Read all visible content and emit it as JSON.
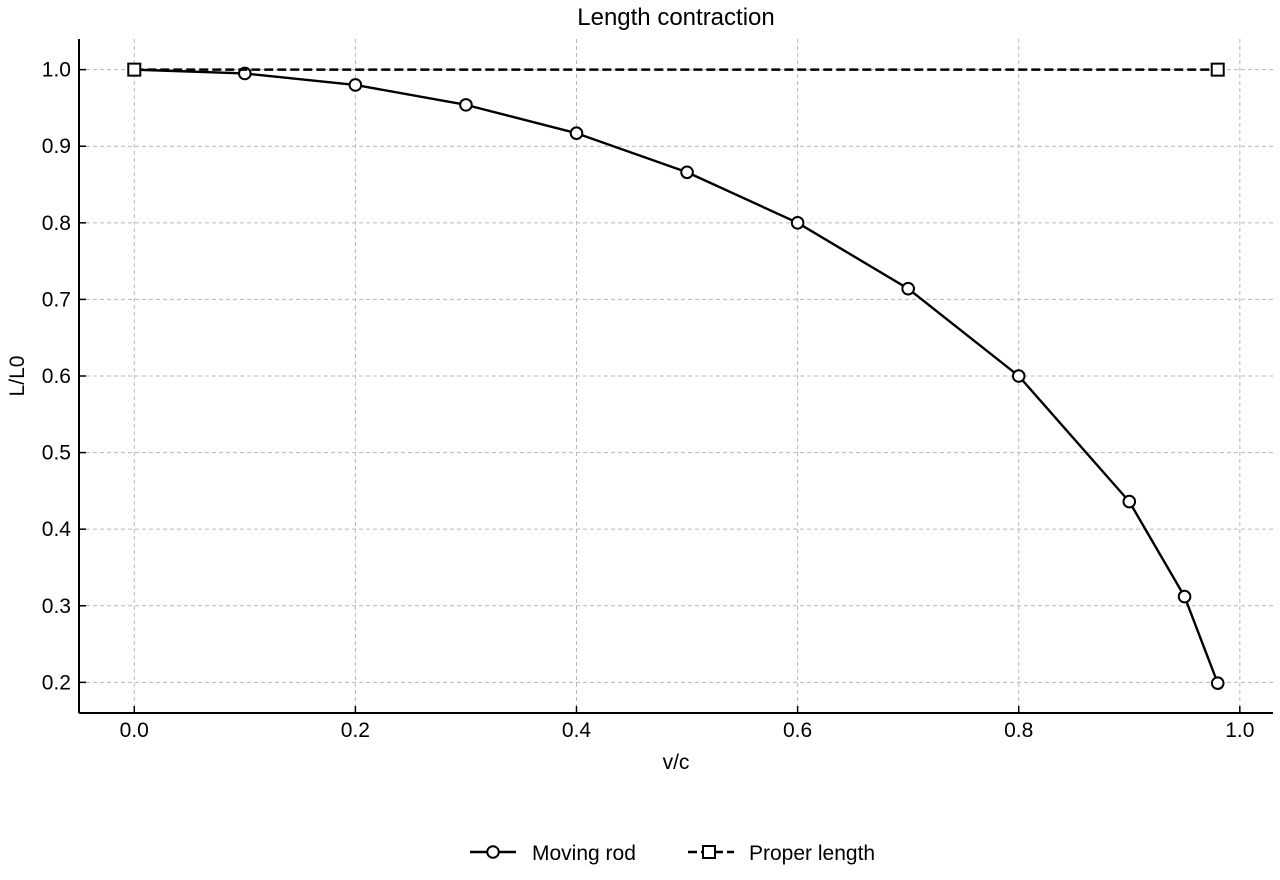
{
  "chart_data": {
    "type": "line",
    "title": "Length contraction",
    "xlabel": "v/c",
    "ylabel": "L/L0",
    "xlim": [
      -0.05,
      1.03
    ],
    "ylim": [
      0.16,
      1.04
    ],
    "x_ticks": [
      "0.0",
      "0.2",
      "0.4",
      "0.6",
      "0.8",
      "1.0"
    ],
    "y_ticks": [
      "0.2",
      "0.3",
      "0.4",
      "0.5",
      "0.6",
      "0.7",
      "0.8",
      "0.9",
      "1.0"
    ],
    "grid": true,
    "legend_position": "bottom-center",
    "series": [
      {
        "name": "Moving rod",
        "marker": "circle",
        "line_style": "solid",
        "color": "#000000",
        "x": [
          0.0,
          0.1,
          0.2,
          0.3,
          0.4,
          0.5,
          0.6,
          0.7,
          0.8,
          0.9,
          0.95,
          0.98
        ],
        "y": [
          1.0,
          0.995,
          0.98,
          0.954,
          0.917,
          0.866,
          0.8,
          0.714,
          0.6,
          0.436,
          0.312,
          0.199
        ]
      },
      {
        "name": "Proper length",
        "marker": "square",
        "line_style": "dashed",
        "color": "#000000",
        "x": [
          0.0,
          0.98
        ],
        "y": [
          1.0,
          1.0
        ]
      }
    ]
  }
}
